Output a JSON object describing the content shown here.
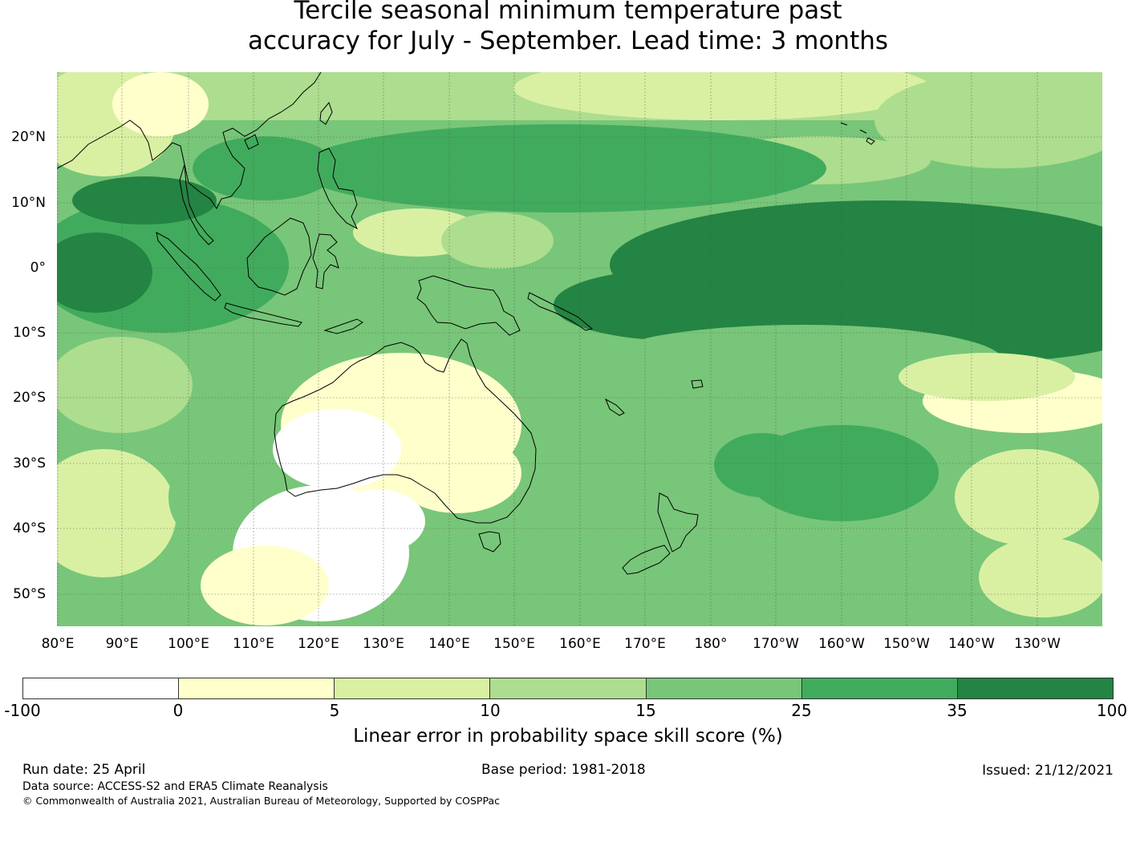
{
  "title": {
    "line1": "Tercile seasonal minimum temperature past",
    "line2": "accuracy for July - September. Lead time: 3 months"
  },
  "map": {
    "lat_ticks": [
      "20°N",
      "10°N",
      "0°",
      "10°S",
      "20°S",
      "30°S",
      "40°S",
      "50°S"
    ],
    "lon_ticks": [
      "80°E",
      "90°E",
      "100°E",
      "110°E",
      "120°E",
      "130°E",
      "140°E",
      "150°E",
      "160°E",
      "170°E",
      "180°",
      "170°W",
      "160°W",
      "150°W",
      "140°W",
      "130°W"
    ],
    "grid_lines": true
  },
  "colorbar": {
    "ticks": [
      "-100",
      "0",
      "5",
      "10",
      "15",
      "25",
      "35",
      "100"
    ],
    "colors": [
      "#ffffff",
      "#ffffcc",
      "#d9f0a3",
      "#addd8e",
      "#78c679",
      "#41ab5d",
      "#238443"
    ],
    "label": "Linear error in probability space skill score (%)"
  },
  "footer": {
    "run_date": "Run date: 25 April",
    "base_period": "Base period: 1981-2018",
    "issued": "Issued: 21/12/2021",
    "data_source": "Data source: ACCESS-S2 and ERA5 Climate Reanalysis",
    "copyright": "© Commonwealth of Australia 2021, Australian Bureau of Meteorology, Supported by COSPPac"
  }
}
